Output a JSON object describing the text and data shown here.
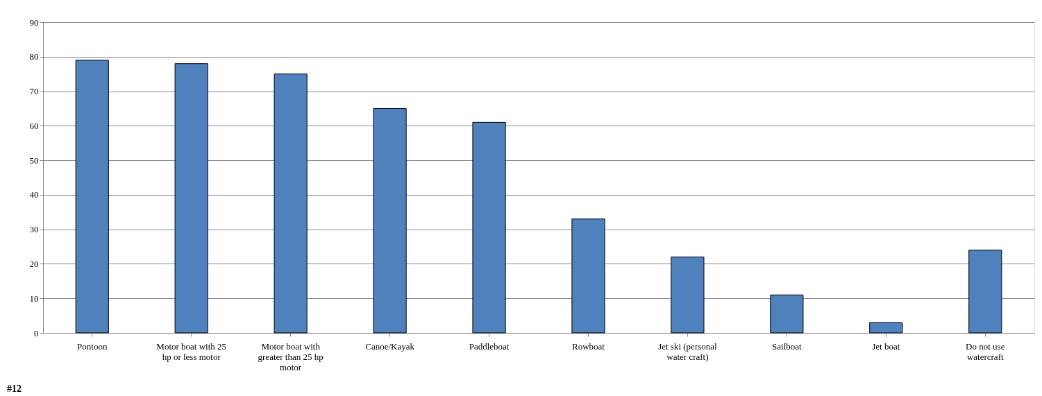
{
  "chart_data": {
    "type": "bar",
    "categories": [
      "Pontoon",
      "Motor boat with 25 hp or less motor",
      "Motor boat with greater than 25 hp motor",
      "Canoe/Kayak",
      "Paddleboat",
      "Rowboat",
      "Jet ski (personal water craft)",
      "Sailboat",
      "Jet boat",
      "Do not use watercraft"
    ],
    "values": [
      79,
      78,
      75,
      65,
      61,
      33,
      22,
      11,
      3,
      24
    ],
    "color": "#4f81bd",
    "ylim": [
      0,
      90
    ],
    "yticks": [
      0,
      10,
      20,
      30,
      40,
      50,
      60,
      70,
      80,
      90
    ],
    "grid": "y",
    "annotations": [
      "#12"
    ]
  }
}
